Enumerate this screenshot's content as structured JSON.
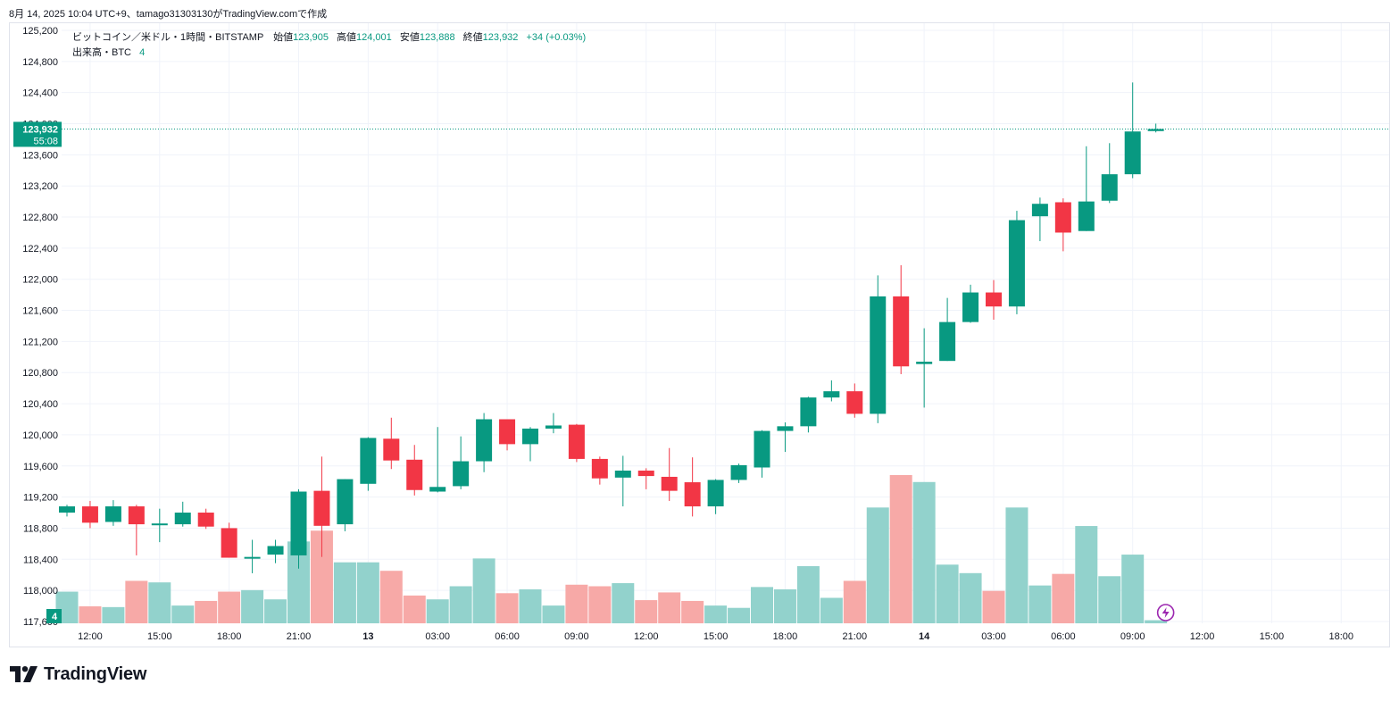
{
  "header": {
    "caption": "8月 14, 2025 10:04 UTC+9、tamago31303130がTradingView.comで作成"
  },
  "legend": {
    "symbol": "ビットコイン／米ドル・1時間・BITSTAMP",
    "open_label": "始値",
    "open": "123,905",
    "high_label": "高値",
    "high": "124,001",
    "low_label": "安値",
    "low": "123,888",
    "close_label": "終値",
    "close": "123,932",
    "change": "+34 (+0.03%)",
    "volume_label": "出来高・BTC",
    "volume_value": "4"
  },
  "price_tag": {
    "price": "123,932",
    "countdown": "55:08"
  },
  "volume_tag": "4",
  "brand": {
    "name": "TradingView"
  },
  "colors": {
    "up": "#089981",
    "down": "#f23645",
    "up_volume": "#92d2cc",
    "down_volume": "#f7a9a7",
    "grid": "#f0f3fa",
    "text": "#131722"
  },
  "chart_data": {
    "type": "candlestick",
    "interval": "1時間",
    "y_ticks": [
      "125,200",
      "124,800",
      "124,400",
      "124,000",
      "123,600",
      "123,200",
      "122,800",
      "122,400",
      "122,000",
      "121,600",
      "121,200",
      "120,800",
      "120,400",
      "120,000",
      "119,600",
      "119,200",
      "118,800",
      "118,400",
      "118,000",
      "117,600"
    ],
    "ylim": [
      117600,
      125200
    ],
    "x_ticks": [
      {
        "label": "12:00",
        "i": 1,
        "bold": false
      },
      {
        "label": "15:00",
        "i": 4,
        "bold": false
      },
      {
        "label": "18:00",
        "i": 7,
        "bold": false
      },
      {
        "label": "21:00",
        "i": 10,
        "bold": false
      },
      {
        "label": "13",
        "i": 13,
        "bold": true
      },
      {
        "label": "03:00",
        "i": 16,
        "bold": false
      },
      {
        "label": "06:00",
        "i": 19,
        "bold": false
      },
      {
        "label": "09:00",
        "i": 22,
        "bold": false
      },
      {
        "label": "12:00",
        "i": 25,
        "bold": false
      },
      {
        "label": "15:00",
        "i": 28,
        "bold": false
      },
      {
        "label": "18:00",
        "i": 31,
        "bold": false
      },
      {
        "label": "21:00",
        "i": 34,
        "bold": false
      },
      {
        "label": "14",
        "i": 37,
        "bold": true
      },
      {
        "label": "03:00",
        "i": 40,
        "bold": false
      },
      {
        "label": "06:00",
        "i": 43,
        "bold": false
      },
      {
        "label": "09:00",
        "i": 46,
        "bold": false
      },
      {
        "label": "12:00",
        "i": 49,
        "bold": false
      },
      {
        "label": "15:00",
        "i": 52,
        "bold": false
      },
      {
        "label": "18:00",
        "i": 55,
        "bold": false
      }
    ],
    "candles": [
      {
        "o": 119000,
        "h": 119100,
        "l": 118950,
        "c": 119080,
        "v": 41
      },
      {
        "o": 119080,
        "h": 119150,
        "l": 118800,
        "c": 118870,
        "v": 22
      },
      {
        "o": 118880,
        "h": 119160,
        "l": 118830,
        "c": 119080,
        "v": 21
      },
      {
        "o": 119080,
        "h": 119100,
        "l": 118450,
        "c": 118850,
        "v": 55
      },
      {
        "o": 118850,
        "h": 119050,
        "l": 118620,
        "c": 118860,
        "v": 53
      },
      {
        "o": 118850,
        "h": 119140,
        "l": 118820,
        "c": 119000,
        "v": 23
      },
      {
        "o": 119000,
        "h": 119050,
        "l": 118790,
        "c": 118820,
        "v": 29
      },
      {
        "o": 118800,
        "h": 118870,
        "l": 118420,
        "c": 118420,
        "v": 41
      },
      {
        "o": 118420,
        "h": 118650,
        "l": 118220,
        "c": 118430,
        "v": 43
      },
      {
        "o": 118460,
        "h": 118650,
        "l": 118350,
        "c": 118570,
        "v": 31
      },
      {
        "o": 118450,
        "h": 119300,
        "l": 118280,
        "c": 119270,
        "v": 106
      },
      {
        "o": 119280,
        "h": 119720,
        "l": 118430,
        "c": 118830,
        "v": 120
      },
      {
        "o": 118850,
        "h": 119430,
        "l": 118760,
        "c": 119430,
        "v": 79
      },
      {
        "o": 119370,
        "h": 119970,
        "l": 119280,
        "c": 119960,
        "v": 79
      },
      {
        "o": 119950,
        "h": 120220,
        "l": 119560,
        "c": 119670,
        "v": 68
      },
      {
        "o": 119680,
        "h": 119870,
        "l": 119220,
        "c": 119290,
        "v": 36
      },
      {
        "o": 119270,
        "h": 120100,
        "l": 119260,
        "c": 119330,
        "v": 31
      },
      {
        "o": 119340,
        "h": 119980,
        "l": 119300,
        "c": 119660,
        "v": 48
      },
      {
        "o": 119660,
        "h": 120280,
        "l": 119520,
        "c": 120200,
        "v": 84
      },
      {
        "o": 120200,
        "h": 120200,
        "l": 119800,
        "c": 119880,
        "v": 39
      },
      {
        "o": 119880,
        "h": 120100,
        "l": 119660,
        "c": 120080,
        "v": 44
      },
      {
        "o": 120080,
        "h": 120280,
        "l": 120020,
        "c": 120120,
        "v": 23
      },
      {
        "o": 120130,
        "h": 120140,
        "l": 119650,
        "c": 119690,
        "v": 50
      },
      {
        "o": 119690,
        "h": 119720,
        "l": 119360,
        "c": 119440,
        "v": 48
      },
      {
        "o": 119450,
        "h": 119730,
        "l": 119080,
        "c": 119540,
        "v": 52
      },
      {
        "o": 119540,
        "h": 119570,
        "l": 119300,
        "c": 119470,
        "v": 30
      },
      {
        "o": 119460,
        "h": 119830,
        "l": 119150,
        "c": 119280,
        "v": 40
      },
      {
        "o": 119390,
        "h": 119710,
        "l": 118950,
        "c": 119080,
        "v": 29
      },
      {
        "o": 119080,
        "h": 119430,
        "l": 118980,
        "c": 119420,
        "v": 23
      },
      {
        "o": 119420,
        "h": 119630,
        "l": 119380,
        "c": 119610,
        "v": 20
      },
      {
        "o": 119580,
        "h": 120060,
        "l": 119450,
        "c": 120050,
        "v": 47
      },
      {
        "o": 120050,
        "h": 120160,
        "l": 119780,
        "c": 120110,
        "v": 44
      },
      {
        "o": 120110,
        "h": 120490,
        "l": 120030,
        "c": 120480,
        "v": 74
      },
      {
        "o": 120480,
        "h": 120700,
        "l": 120430,
        "c": 120560,
        "v": 33
      },
      {
        "o": 120560,
        "h": 120660,
        "l": 120220,
        "c": 120270,
        "v": 55
      },
      {
        "o": 120270,
        "h": 122050,
        "l": 120150,
        "c": 121780,
        "v": 150
      },
      {
        "o": 121780,
        "h": 122180,
        "l": 120780,
        "c": 120880,
        "v": 192
      },
      {
        "o": 120910,
        "h": 121370,
        "l": 120350,
        "c": 120940,
        "v": 183
      },
      {
        "o": 120950,
        "h": 121760,
        "l": 120950,
        "c": 121450,
        "v": 76
      },
      {
        "o": 121450,
        "h": 121930,
        "l": 121440,
        "c": 121830,
        "v": 65
      },
      {
        "o": 121830,
        "h": 121990,
        "l": 121480,
        "c": 121650,
        "v": 42
      },
      {
        "o": 121650,
        "h": 122880,
        "l": 121550,
        "c": 122760,
        "v": 150
      },
      {
        "o": 122810,
        "h": 123050,
        "l": 122490,
        "c": 122970,
        "v": 49
      },
      {
        "o": 122990,
        "h": 123040,
        "l": 122360,
        "c": 122600,
        "v": 64
      },
      {
        "o": 122620,
        "h": 123710,
        "l": 122620,
        "c": 123000,
        "v": 126
      },
      {
        "o": 123010,
        "h": 123750,
        "l": 122980,
        "c": 123350,
        "v": 61
      },
      {
        "o": 123350,
        "h": 124530,
        "l": 123300,
        "c": 123900,
        "v": 89
      },
      {
        "o": 123905,
        "h": 124001,
        "l": 123888,
        "c": 123932,
        "v": 4
      }
    ]
  }
}
